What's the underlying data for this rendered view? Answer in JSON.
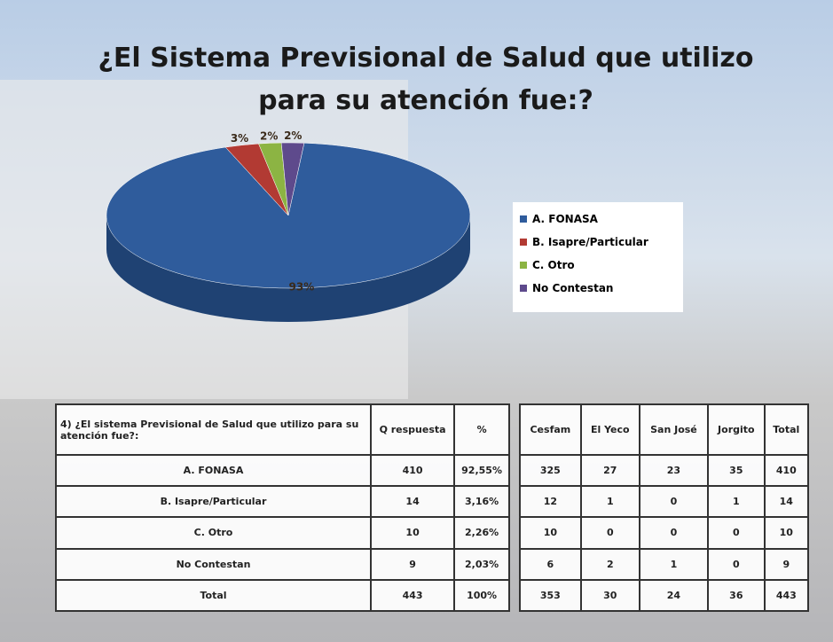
{
  "chart_data": {
    "type": "pie",
    "title": "¿El Sistema Previsional de Salud que utilizo para su  atención fue:?",
    "categories": [
      "A.   FONASA",
      "B.   Isapre/Particular",
      "C.   Otro",
      "No Contestan"
    ],
    "values": [
      93,
      3,
      2,
      2
    ],
    "value_labels": [
      "93%",
      "3%",
      "2%",
      "2%"
    ],
    "colors": [
      "#2f5c9c",
      "#b23a33",
      "#8cb443",
      "#5e4a8c"
    ],
    "legend": "right"
  },
  "tables": [
    {
      "header": [
        "4) ¿El sistema Previsional de Salud que utilizo para su atención fue?:",
        "Q respuesta",
        "%"
      ],
      "rows": [
        [
          "A.   FONASA",
          "410",
          "92,55%"
        ],
        [
          "B.   Isapre/Particular",
          "14",
          "3,16%"
        ],
        [
          "C.   Otro",
          "10",
          "2,26%"
        ],
        [
          "No Contestan",
          "9",
          "2,03%"
        ],
        [
          "Total",
          "443",
          "100%"
        ]
      ]
    },
    {
      "header": [
        "Cesfam",
        "El Yeco",
        "San José",
        "Jorgito",
        "Total"
      ],
      "rows": [
        [
          "325",
          "27",
          "23",
          "35",
          "410"
        ],
        [
          "12",
          "1",
          "0",
          "1",
          "14"
        ],
        [
          "10",
          "0",
          "0",
          "0",
          "10"
        ],
        [
          "6",
          "2",
          "1",
          "0",
          "9"
        ],
        [
          "353",
          "30",
          "24",
          "36",
          "443"
        ]
      ]
    }
  ]
}
